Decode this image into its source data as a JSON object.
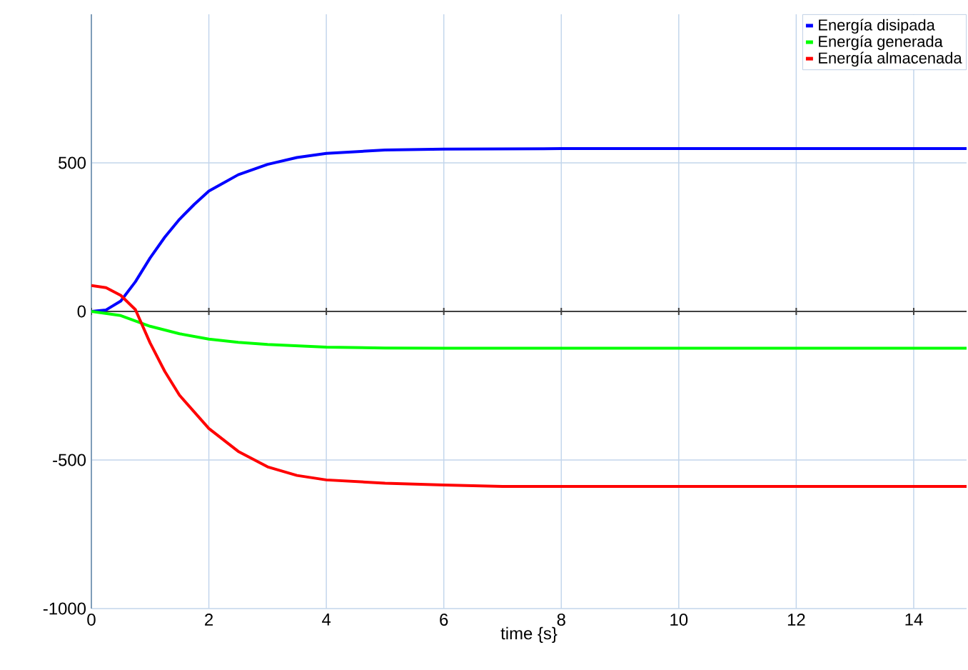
{
  "chart_data": {
    "type": "line",
    "xlabel": "time {s}",
    "xlim": [
      0,
      14.9
    ],
    "ylim": [
      -1000,
      1000
    ],
    "xticks": [
      0,
      2,
      4,
      6,
      8,
      10,
      12,
      14
    ],
    "yticks": [
      -1000,
      -500,
      0,
      500
    ],
    "grid": true,
    "legend": "top right",
    "marker": "none",
    "line_style": "solid",
    "ref_lines": [
      {
        "axis": "y",
        "value": 0,
        "color": "#404040"
      }
    ],
    "series": [
      {
        "name": "Energía disipada",
        "color": "#0000ff",
        "x": [
          0,
          0.25,
          0.5,
          0.75,
          1,
          1.25,
          1.5,
          1.75,
          2,
          2.5,
          3,
          3.5,
          4,
          5,
          6,
          8,
          10,
          12,
          14.9
        ],
        "values": [
          0,
          5,
          35,
          100,
          180,
          250,
          310,
          360,
          405,
          460,
          495,
          518,
          532,
          543,
          546,
          548,
          548,
          548,
          548
        ]
      },
      {
        "name": "Energía generada",
        "color": "#00ff00",
        "x": [
          0,
          0.5,
          1,
          1.5,
          2,
          2.5,
          3,
          4,
          5,
          6,
          8,
          10,
          12,
          14.9
        ],
        "values": [
          0,
          -14,
          -50,
          -75,
          -93,
          -104,
          -111,
          -120,
          -123,
          -124,
          -124,
          -124,
          -124,
          -124
        ]
      },
      {
        "name": "Energía almacenada",
        "color": "#ff0000",
        "x": [
          0,
          0.25,
          0.5,
          0.75,
          1,
          1.25,
          1.5,
          2,
          2.5,
          3,
          3.5,
          4,
          5,
          6,
          7,
          8,
          10,
          12,
          14.9
        ],
        "values": [
          87,
          80,
          54,
          6,
          -106,
          -202,
          -282,
          -394,
          -471,
          -523,
          -552,
          -567,
          -578,
          -584,
          -589,
          -589,
          -589,
          -589,
          -589
        ]
      }
    ]
  }
}
